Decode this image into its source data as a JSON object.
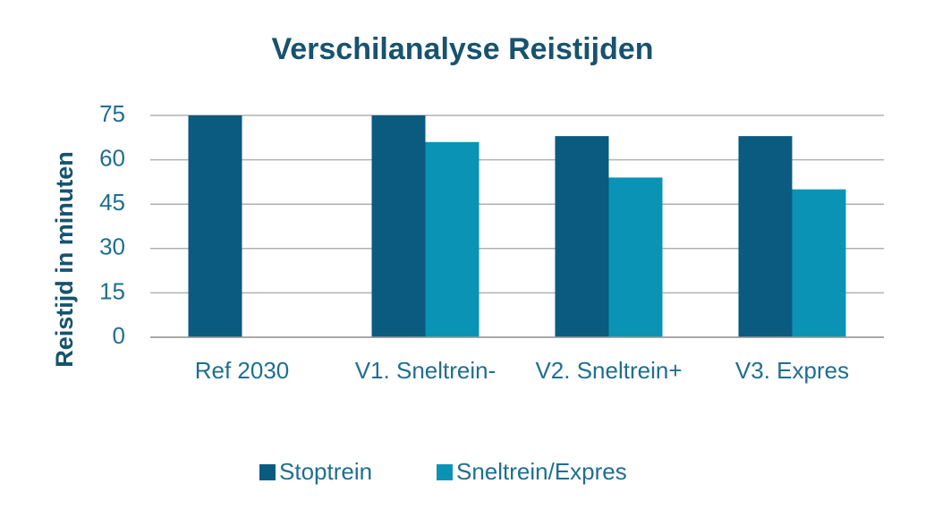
{
  "chart_data": {
    "type": "bar",
    "title": "Verschilanalyse Reistijden",
    "y_label": "Reistijd in minuten",
    "categories": [
      "Ref 2030",
      "V1. Sneltrein-",
      "V2. Sneltrein+",
      "V3. Expres"
    ],
    "series": [
      {
        "name": "Stoptrein",
        "color": "#0b5a80",
        "values": [
          75,
          75,
          68,
          68
        ]
      },
      {
        "name": "Sneltrein/Expres",
        "color": "#0a93b5",
        "values": [
          null,
          66,
          54,
          50
        ]
      }
    ],
    "ylim": [
      0,
      75
    ],
    "yticks": [
      0,
      15,
      30,
      45,
      60,
      75
    ],
    "grid": true,
    "legend": "bottom"
  }
}
